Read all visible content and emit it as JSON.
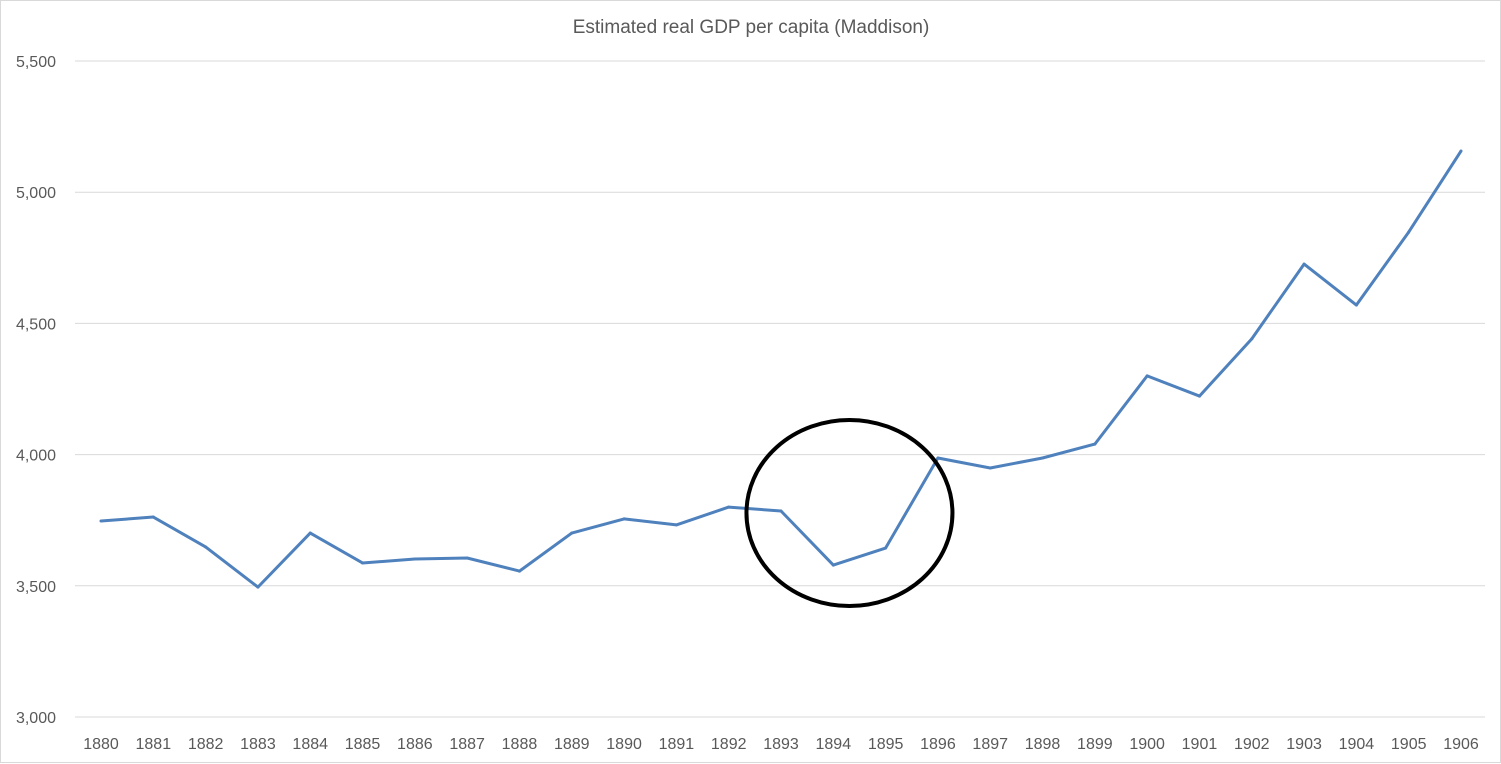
{
  "chart_data": {
    "type": "line",
    "title": "Estimated real GDP per capita  (Maddison)",
    "xlabel": "",
    "ylabel": "",
    "ylim": [
      3000,
      5500
    ],
    "yticks": [
      "3,000",
      "3,500",
      "4,000",
      "4,500",
      "5,000",
      "5,500"
    ],
    "ytick_values": [
      3000,
      3500,
      4000,
      4500,
      5000,
      5500
    ],
    "grid": "horizontal",
    "legend": "none",
    "categories": [
      "1880",
      "1881",
      "1882",
      "1883",
      "1884",
      "1885",
      "1886",
      "1887",
      "1888",
      "1889",
      "1890",
      "1891",
      "1892",
      "1893",
      "1894",
      "1895",
      "1896",
      "1897",
      "1898",
      "1899",
      "1900",
      "1901",
      "1902",
      "1903",
      "1904",
      "1905",
      "1906"
    ],
    "values": [
      3747,
      3762,
      3648,
      3495,
      3701,
      3587,
      3602,
      3606,
      3556,
      3701,
      3755,
      3732,
      3800,
      3785,
      3579,
      3644,
      3987,
      3949,
      3987,
      4040,
      4300,
      4223,
      4441,
      4726,
      4570,
      4848,
      5157
    ],
    "line_color": "#4f81bd",
    "annotation": {
      "shape": "circle",
      "highlights": [
        "1894",
        "1895"
      ],
      "color": "#000000"
    }
  }
}
